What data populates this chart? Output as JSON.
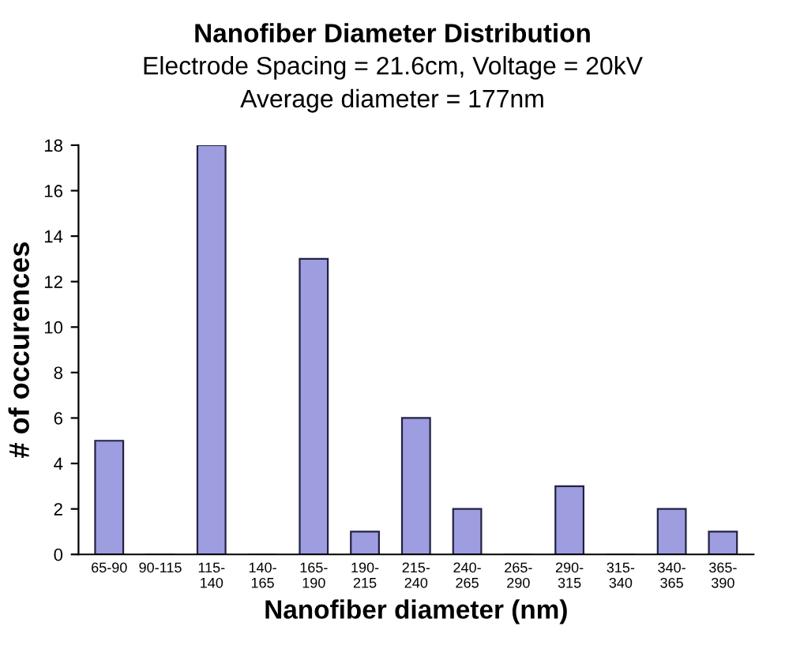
{
  "chart_data": {
    "type": "bar",
    "title": "Nanofiber Diameter Distribution",
    "subtitle": "Electrode Spacing = 21.6cm, Voltage = 20kV",
    "annotations": [
      "Average diameter = 177nm"
    ],
    "xlabel": "Nanofiber diameter (nm)",
    "ylabel": "# of occurences",
    "categories": [
      "65-90",
      "90-115",
      "115-140",
      "140-165",
      "165-190",
      "190-215",
      "215-240",
      "240-265",
      "265-290",
      "290-315",
      "315-340",
      "340-365",
      "365-390"
    ],
    "values": [
      5,
      0,
      18,
      0,
      13,
      1,
      6,
      2,
      0,
      3,
      0,
      2,
      1
    ],
    "color": "#9d9de0",
    "ylim": [
      0,
      18
    ],
    "yticks": [
      0,
      2,
      4,
      6,
      8,
      10,
      12,
      14,
      16,
      18
    ],
    "grid": false,
    "legend": false
  }
}
